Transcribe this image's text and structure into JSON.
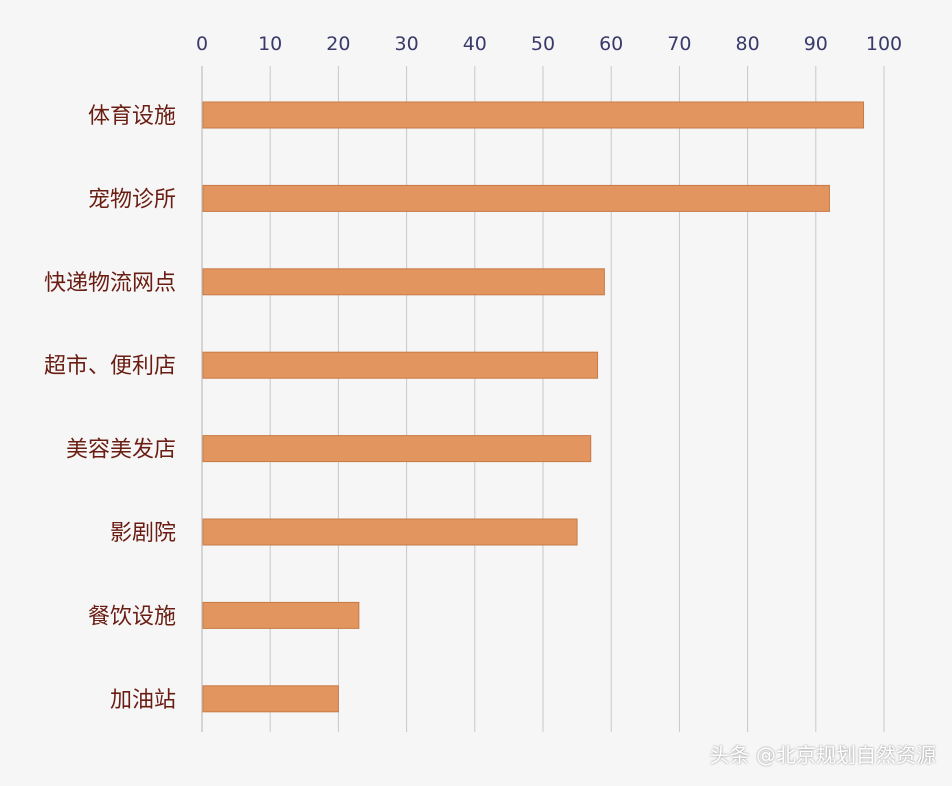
{
  "chart_data": {
    "type": "bar",
    "orientation": "horizontal",
    "x_axis_position": "top",
    "categories": [
      "体育设施",
      "宠物诊所",
      "快递物流网点",
      "超市、便利店",
      "美容美发店",
      "影剧院",
      "餐饮设施",
      "加油站"
    ],
    "values": [
      97,
      92,
      59,
      58,
      57,
      55,
      23,
      20
    ],
    "xlim": [
      0,
      100
    ],
    "xticks": [
      0,
      10,
      20,
      30,
      40,
      50,
      60,
      70,
      80,
      90,
      100
    ],
    "grid": "vertical",
    "legend": "none",
    "bar_color": "#e2955e",
    "bar_edge_color": "#c77a46"
  },
  "watermark": "头条 @北京规划自然资源"
}
